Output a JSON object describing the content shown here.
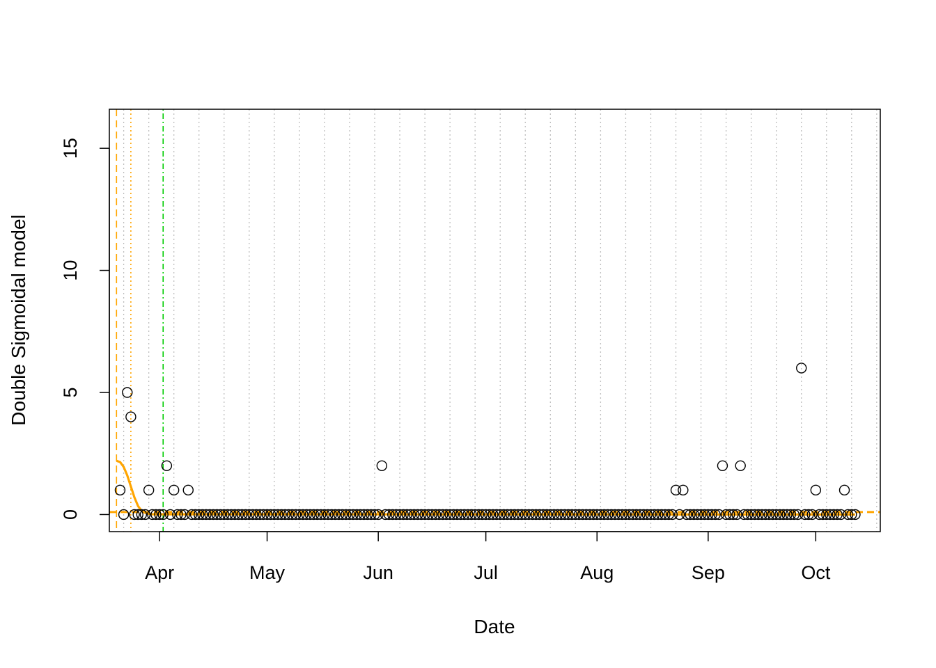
{
  "chart_data": {
    "type": "scatter",
    "title": "",
    "xlabel": "Date",
    "ylabel": "Double Sigmoidal model",
    "x_axis_type": "date",
    "xlim": [
      "2020-03-18",
      "2020-10-19"
    ],
    "ylim": [
      -0.7,
      16.6
    ],
    "x_ticks": [
      {
        "date": "2020-04-01",
        "label": "Apr"
      },
      {
        "date": "2020-05-01",
        "label": "May"
      },
      {
        "date": "2020-06-01",
        "label": "Jun"
      },
      {
        "date": "2020-07-01",
        "label": "Jul"
      },
      {
        "date": "2020-08-01",
        "label": "Aug"
      },
      {
        "date": "2020-09-01",
        "label": "Sep"
      },
      {
        "date": "2020-10-01",
        "label": "Oct"
      }
    ],
    "y_ticks": [
      0,
      5,
      10,
      15
    ],
    "grid": "vertical dotted weekly lines",
    "points": {
      "start": "2020-03-21",
      "end": "2020-10-12",
      "default_value": 0,
      "nonzero": [
        {
          "date": "2020-03-21",
          "y": 1
        },
        {
          "date": "2020-03-23",
          "y": 5
        },
        {
          "date": "2020-03-24",
          "y": 4
        },
        {
          "date": "2020-03-29",
          "y": 1
        },
        {
          "date": "2020-04-03",
          "y": 2
        },
        {
          "date": "2020-04-05",
          "y": 1
        },
        {
          "date": "2020-04-09",
          "y": 1
        },
        {
          "date": "2020-06-02",
          "y": 2
        },
        {
          "date": "2020-08-23",
          "y": 1
        },
        {
          "date": "2020-08-25",
          "y": 1
        },
        {
          "date": "2020-09-05",
          "y": 2
        },
        {
          "date": "2020-09-10",
          "y": 2
        },
        {
          "date": "2020-09-27",
          "y": 6
        },
        {
          "date": "2020-10-01",
          "y": 1
        },
        {
          "date": "2020-10-09",
          "y": 1
        }
      ]
    },
    "fit_curve": {
      "color": "#FFA500",
      "points": [
        {
          "date": "2020-03-20",
          "y": 2.2
        },
        {
          "date": "2020-03-21",
          "y": 2.15
        },
        {
          "date": "2020-03-22",
          "y": 1.95
        },
        {
          "date": "2020-03-23",
          "y": 1.6
        },
        {
          "date": "2020-03-24",
          "y": 1.15
        },
        {
          "date": "2020-03-25",
          "y": 0.7
        },
        {
          "date": "2020-03-26",
          "y": 0.35
        },
        {
          "date": "2020-03-27",
          "y": 0.15
        },
        {
          "date": "2020-03-28",
          "y": 0.07
        },
        {
          "date": "2020-03-29",
          "y": 0.03
        },
        {
          "date": "2020-03-30",
          "y": 0.01
        },
        {
          "date": "2020-10-12",
          "y": 0.0
        }
      ]
    },
    "reference_lines": [
      {
        "orientation": "vertical",
        "date": "2020-03-20",
        "color": "#FFA500",
        "style": "dashed"
      },
      {
        "orientation": "vertical",
        "date": "2020-03-24",
        "color": "#FFA500",
        "style": "dotted"
      },
      {
        "orientation": "vertical",
        "date": "2020-04-02",
        "color": "#00CC00",
        "style": "dotdash"
      },
      {
        "orientation": "horizontal",
        "y": 0.1,
        "color": "#FFA500",
        "style": "dashed"
      }
    ]
  }
}
